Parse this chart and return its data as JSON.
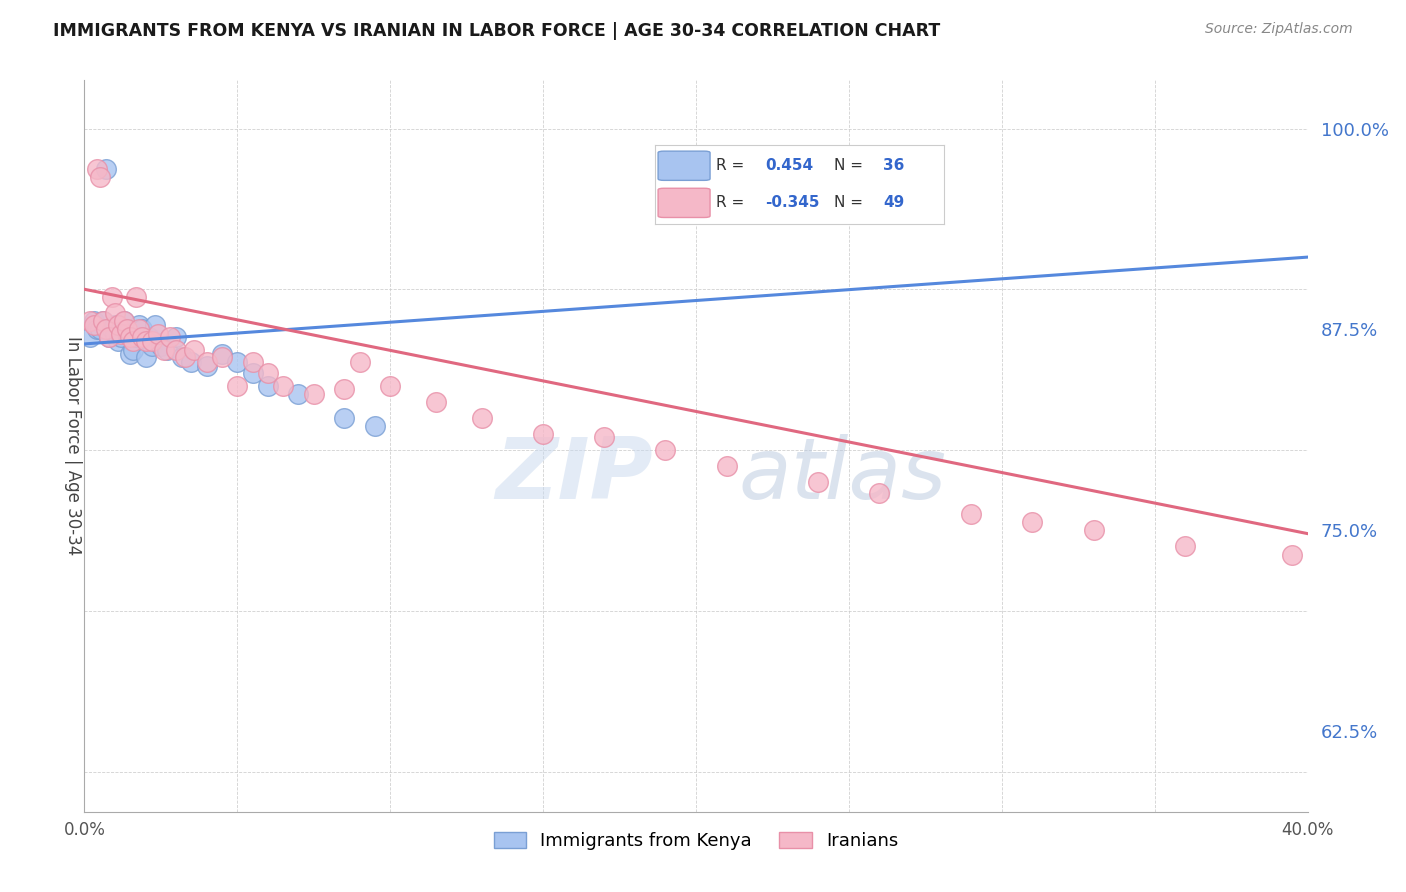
{
  "title": "IMMIGRANTS FROM KENYA VS IRANIAN IN LABOR FORCE | AGE 30-34 CORRELATION CHART",
  "source": "Source: ZipAtlas.com",
  "ylabel": "In Labor Force | Age 30-34",
  "xlim": [
    0.0,
    0.4
  ],
  "ylim": [
    0.575,
    1.03
  ],
  "yticks_right": [
    0.625,
    0.75,
    0.875,
    1.0
  ],
  "ytick_labels_right": [
    "62.5%",
    "75.0%",
    "87.5%",
    "100.0%"
  ],
  "xtick_positions": [
    0.0,
    0.05,
    0.1,
    0.15,
    0.2,
    0.25,
    0.3,
    0.35,
    0.4
  ],
  "xtick_labels": [
    "0.0%",
    "",
    "",
    "",
    "",
    "",
    "",
    "",
    "40.0%"
  ],
  "kenya_color": "#a8c4f0",
  "kenya_edge": "#7a9fd4",
  "iran_color": "#f5b8c8",
  "iran_edge": "#e890a8",
  "kenya_line_color": "#5588dd",
  "iran_line_color": "#e06880",
  "legend_label_kenya": "Immigrants from Kenya",
  "legend_label_iran": "Iranians",
  "watermark_zip": "ZIP",
  "watermark_atlas": "atlas",
  "kenya_scatter_x": [
    0.002,
    0.003,
    0.004,
    0.005,
    0.006,
    0.007,
    0.008,
    0.009,
    0.01,
    0.01,
    0.011,
    0.012,
    0.013,
    0.014,
    0.015,
    0.016,
    0.017,
    0.018,
    0.019,
    0.02,
    0.021,
    0.022,
    0.023,
    0.025,
    0.027,
    0.03,
    0.032,
    0.035,
    0.04,
    0.045,
    0.05,
    0.055,
    0.06,
    0.07,
    0.085,
    0.095
  ],
  "kenya_scatter_y": [
    0.87,
    0.88,
    0.875,
    0.875,
    0.88,
    0.975,
    0.87,
    0.875,
    0.878,
    0.872,
    0.868,
    0.87,
    0.88,
    0.872,
    0.86,
    0.862,
    0.87,
    0.878,
    0.875,
    0.858,
    0.87,
    0.865,
    0.878,
    0.865,
    0.862,
    0.87,
    0.858,
    0.855,
    0.852,
    0.86,
    0.855,
    0.848,
    0.84,
    0.835,
    0.82,
    0.815
  ],
  "iran_scatter_x": [
    0.002,
    0.003,
    0.004,
    0.005,
    0.006,
    0.007,
    0.008,
    0.009,
    0.01,
    0.011,
    0.012,
    0.013,
    0.014,
    0.015,
    0.016,
    0.017,
    0.018,
    0.019,
    0.02,
    0.022,
    0.024,
    0.026,
    0.028,
    0.03,
    0.033,
    0.036,
    0.04,
    0.045,
    0.05,
    0.055,
    0.06,
    0.065,
    0.075,
    0.085,
    0.09,
    0.1,
    0.115,
    0.13,
    0.15,
    0.17,
    0.19,
    0.21,
    0.24,
    0.26,
    0.29,
    0.31,
    0.33,
    0.36,
    0.395
  ],
  "iran_scatter_y": [
    0.88,
    0.878,
    0.975,
    0.97,
    0.88,
    0.875,
    0.87,
    0.895,
    0.885,
    0.878,
    0.872,
    0.88,
    0.875,
    0.87,
    0.868,
    0.895,
    0.875,
    0.87,
    0.868,
    0.868,
    0.872,
    0.862,
    0.87,
    0.862,
    0.858,
    0.862,
    0.855,
    0.858,
    0.84,
    0.855,
    0.848,
    0.84,
    0.835,
    0.838,
    0.855,
    0.84,
    0.83,
    0.82,
    0.81,
    0.808,
    0.8,
    0.79,
    0.78,
    0.773,
    0.76,
    0.755,
    0.75,
    0.74,
    0.735
  ]
}
